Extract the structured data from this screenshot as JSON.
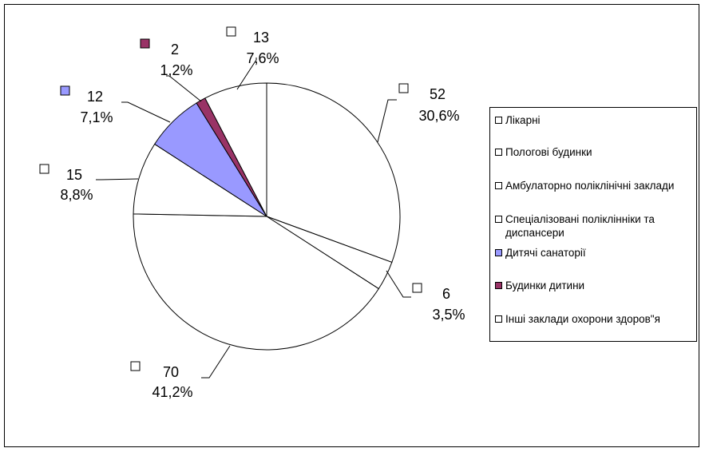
{
  "chart_data": {
    "type": "pie",
    "start_angle_deg": 90,
    "direction": "clockwise",
    "legend_placement": "right",
    "slices": [
      {
        "label": "Лікарні",
        "value": 52,
        "percent": "30,6%",
        "color": "#ffffff"
      },
      {
        "label": "Пологові будинки",
        "value": 6,
        "percent": "3,5%",
        "color": "#ffffff"
      },
      {
        "label": "Амбулаторно поліклінічні заклади",
        "value": 70,
        "percent": "41,2%",
        "color": "#ffffff"
      },
      {
        "label": "Спеціалізовані поліклінніки та диспансери",
        "value": 15,
        "percent": "8,8%",
        "color": "#ffffff"
      },
      {
        "label": "Дитячі санаторії",
        "value": 12,
        "percent": "7,1%",
        "color": "#9999ff"
      },
      {
        "label": "Будинки дитини",
        "value": 2,
        "percent": "1,2%",
        "color": "#993366"
      },
      {
        "label": "Інші заклади охорони здоров\"я",
        "value": 13,
        "percent": "7,6%",
        "color": "#ffffff"
      }
    ]
  },
  "legend": {
    "items": [
      {
        "label": "Лікарні",
        "color": "#ffffff"
      },
      {
        "label": "Пологові будинки",
        "color": "#ffffff"
      },
      {
        "label": "Амбулаторно поліклінічні заклади",
        "color": "#ffffff"
      },
      {
        "label": "Спеціалізовані поліклінніки та диспансери",
        "color": "#ffffff"
      },
      {
        "label": "Дитячі санаторії",
        "color": "#9999ff"
      },
      {
        "label": "Будинки дитини",
        "color": "#993366"
      },
      {
        "label": "Інші заклади охорони здоров\"я",
        "color": "#ffffff"
      }
    ]
  }
}
